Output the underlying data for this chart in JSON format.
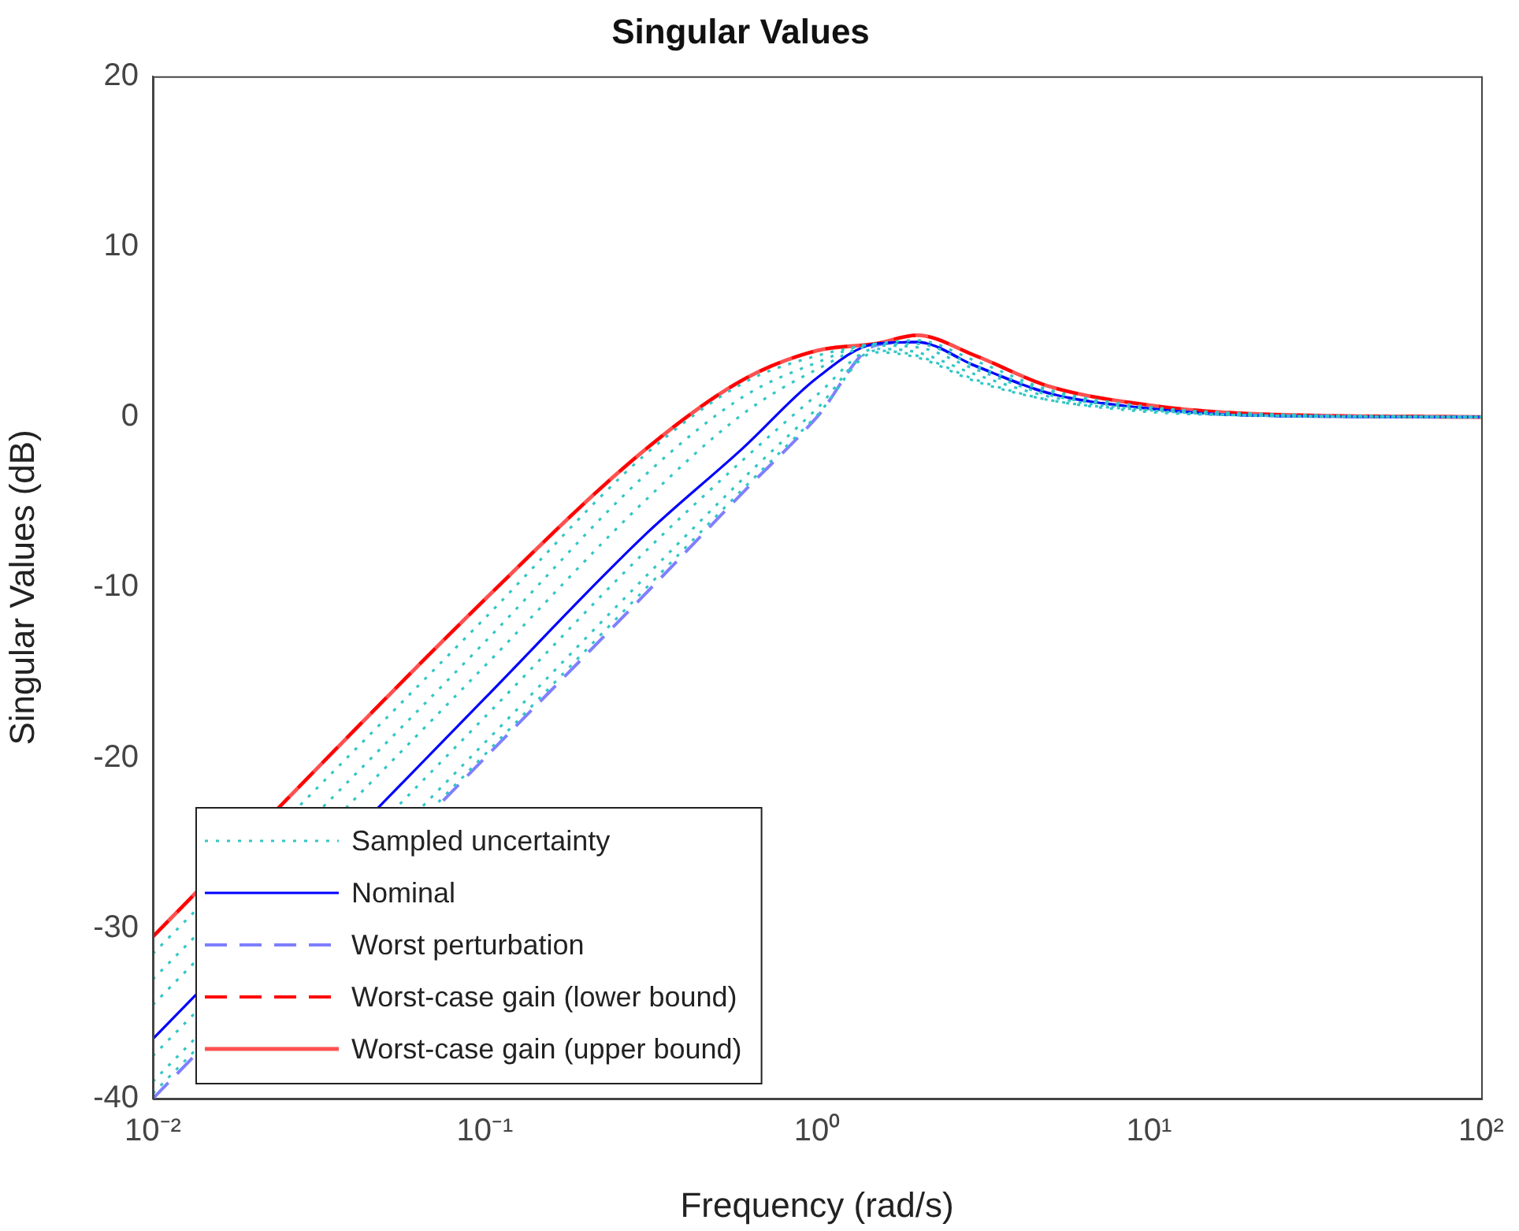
{
  "chart_data": {
    "type": "line",
    "title": "Singular Values",
    "xlabel": "Frequency (rad/s)",
    "ylabel": "Singular Values (dB)",
    "log": "x",
    "x": [
      0.01,
      0.1,
      0.3,
      0.6,
      1,
      1.5,
      2,
      3,
      5,
      10,
      20,
      100
    ],
    "xlim": [
      0.01,
      100
    ],
    "xticks": [
      {
        "value": 0.01,
        "label": "10⁻²"
      },
      {
        "value": 0.1,
        "label": "10⁻¹"
      },
      {
        "value": 1,
        "label": "10⁰"
      },
      {
        "value": 10,
        "label": "10¹"
      },
      {
        "value": 100,
        "label": "10²"
      }
    ],
    "ylim": [
      -40,
      20
    ],
    "yticks": [
      -40,
      -30,
      -20,
      -10,
      0,
      10,
      20
    ],
    "grid": false,
    "legend": "bottom left",
    "marker": "none",
    "series": [
      {
        "name": "Sampled uncertainty",
        "color": "#33c6c6",
        "line_style": "dotted",
        "values": [
          -31.5,
          -11.8,
          -2.3,
          2.0,
          3.6,
          4.3,
          4.5,
          3.3,
          1.6,
          0.6,
          0.2,
          0
        ]
      },
      {
        "color": "#33c6c6",
        "line_style": "dotted",
        "values": [
          -33,
          -13.2,
          -3.5,
          1.2,
          3.2,
          4.3,
          4.3,
          3.0,
          1.5,
          0.5,
          0.2,
          0
        ]
      },
      {
        "color": "#33c6c6",
        "line_style": "dotted",
        "values": [
          -34.5,
          -14.6,
          -5.0,
          0.2,
          2.8,
          4.2,
          4.1,
          2.8,
          1.3,
          0.5,
          0.1,
          0
        ]
      },
      {
        "color": "#33c6c6",
        "line_style": "dotted",
        "values": [
          -37.5,
          -17.6,
          -8,
          -2.5,
          1.3,
          4.0,
          3.8,
          2.5,
          1.2,
          0.4,
          0.1,
          0
        ]
      },
      {
        "color": "#33c6c6",
        "line_style": "dotted",
        "values": [
          -39,
          -19.1,
          -9.5,
          -3.6,
          0.5,
          3.9,
          3.6,
          2.2,
          1.0,
          0.4,
          0.1,
          0
        ]
      },
      {
        "color": "#33c6c6",
        "line_style": "dotted",
        "values": [
          -39.7,
          -19.8,
          -10.2,
          -4.2,
          0.1,
          3.8,
          3.5,
          2.1,
          1.0,
          0.3,
          0.1,
          0
        ]
      },
      {
        "name": "Nominal",
        "color": "#0000ff",
        "line_style": "solid",
        "values": [
          -36.5,
          -16.5,
          -7,
          -1.8,
          2.3,
          4.3,
          4.4,
          3.0,
          1.4,
          0.5,
          0.1,
          0
        ]
      },
      {
        "name": "Worst perturbation",
        "color": "#7f7fff",
        "line_style": "dashed",
        "values": [
          -40,
          -20,
          -10.5,
          -4.4,
          0,
          4.2,
          4.4,
          3.0,
          1.4,
          0.5,
          0.1,
          0
        ]
      },
      {
        "name": "Worst-case gain (lower bound)",
        "color": "#ff0000",
        "line_style": "dashed",
        "values": [
          -30.5,
          -10.7,
          -2,
          2.2,
          3.9,
          4.3,
          4.8,
          3.6,
          1.8,
          0.7,
          0.2,
          0
        ]
      },
      {
        "name": "Worst-case gain (upper bound)",
        "color": "#ff5050",
        "line_style": "solid",
        "values": [
          -30.5,
          -10.7,
          -2,
          2.2,
          3.9,
          4.3,
          4.8,
          3.6,
          1.8,
          0.7,
          0.2,
          0
        ]
      }
    ]
  }
}
